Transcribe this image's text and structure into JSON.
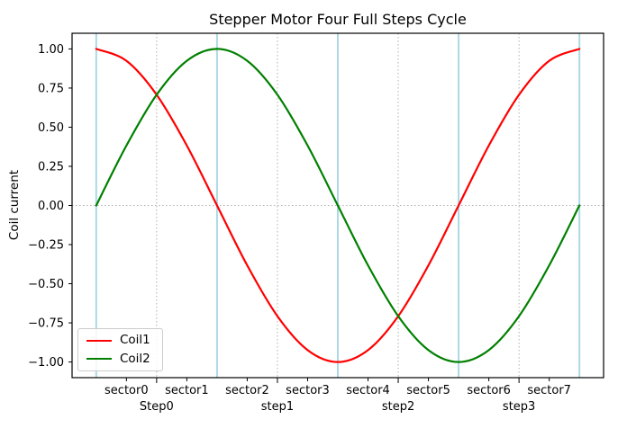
{
  "chart_data": {
    "type": "line",
    "title": "Stepper Motor Four Full Steps Cycle",
    "xlabel": "",
    "ylabel": "Coil current",
    "xlim": [
      -0.4,
      8.4
    ],
    "ylim": [
      -1.1,
      1.1
    ],
    "grid_on": true,
    "x": [
      0,
      0.5,
      1,
      1.5,
      2,
      2.5,
      3,
      3.5,
      4,
      4.5,
      5,
      5.5,
      6,
      6.5,
      7,
      7.5,
      8
    ],
    "series": [
      {
        "name": "Coil1",
        "color": "#ff0000",
        "values": [
          1,
          0.9239,
          0.7071,
          0.3827,
          0,
          -0.3827,
          -0.7071,
          -0.9239,
          -1,
          -0.9239,
          -0.7071,
          -0.3827,
          0,
          0.3827,
          0.7071,
          0.9239,
          1
        ]
      },
      {
        "name": "Coil2",
        "color": "#008000",
        "values": [
          0,
          0.3827,
          0.7071,
          0.9239,
          1,
          0.9239,
          0.7071,
          0.3827,
          0,
          -0.3827,
          -0.7071,
          -0.9239,
          -1,
          -0.9239,
          -0.7071,
          -0.3827,
          0
        ]
      }
    ],
    "yticks": {
      "positions": [
        -1,
        -0.75,
        -0.5,
        -0.25,
        0,
        0.25,
        0.5,
        0.75,
        1
      ],
      "labels": [
        "−1.00",
        "−0.75",
        "−0.50",
        "−0.25",
        "0.00",
        "0.25",
        "0.50",
        "0.75",
        "1.00"
      ]
    },
    "xticks_minor": {
      "positions": [
        0.5,
        1.5,
        2.5,
        3.5,
        4.5,
        5.5,
        6.5,
        7.5
      ],
      "labels": [
        "sector0",
        "sector1",
        "sector2",
        "sector3",
        "sector4",
        "sector5",
        "sector6",
        "sector7"
      ]
    },
    "xticks_major": {
      "positions": [
        1,
        3,
        5,
        7
      ],
      "labels": [
        "Step0",
        "step1",
        "step2",
        "step3"
      ]
    },
    "grid": {
      "vlines": [
        1,
        3,
        5,
        7
      ],
      "hlines": [
        0
      ],
      "style": "dotted",
      "color": "#b0b0b0"
    },
    "step_boundaries": {
      "positions": [
        0,
        2,
        4,
        6,
        8
      ],
      "color": "#add8e6"
    },
    "legend": {
      "position": "lower left",
      "entries": [
        {
          "label": "Coil1",
          "color": "#ff0000"
        },
        {
          "label": "Coil2",
          "color": "#008000"
        }
      ]
    }
  }
}
